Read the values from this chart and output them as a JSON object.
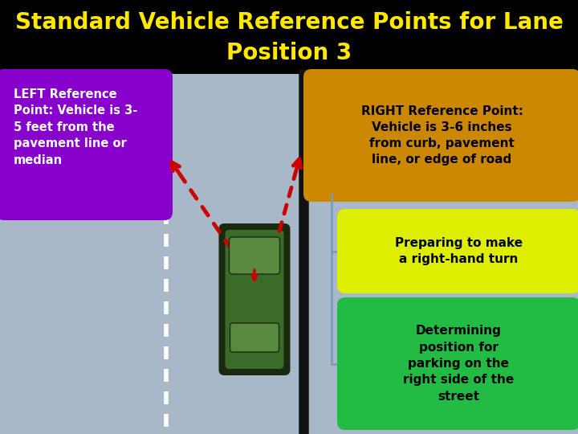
{
  "title_line1": "Standard Vehicle Reference Points for Lane",
  "title_line2": "Position 3",
  "title_color": "#FFE800",
  "title_bg": "#000000",
  "title_fontsize": 20,
  "bg_color": "#A8B8C8",
  "left_box_text": "LEFT Reference\nPoint: Vehicle is 3-\n5 feet from the\npavement line or\nmedian",
  "left_box_color": "#8800CC",
  "left_box_text_color": "#FFFFFF",
  "right_box1_text": "RIGHT Reference Point:\nVehicle is 3-6 inches\nfrom curb, pavement\nline, or edge of road",
  "right_box1_color": "#CC8800",
  "right_box2_text": "Preparing to make\na right-hand turn",
  "right_box2_color": "#DDEE00",
  "right_box3_text": "Determining\nposition for\nparking on the\nright side of the\nstreet",
  "right_box3_color": "#22BB44",
  "box_text_color": "#000000",
  "road_edge_color": "#111111",
  "lane_line_color": "#FFFFFF",
  "arrow_color": "#CC0000",
  "bracket_color": "#7799BB",
  "car_body_color": "#3A6B28",
  "car_dark_color": "#1A2A10",
  "car_light_color": "#5A8A40"
}
